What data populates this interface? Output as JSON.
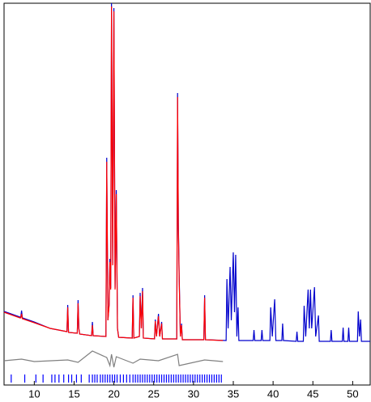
{
  "chart_data": {
    "type": "line",
    "xlim": [
      6.2,
      52.2
    ],
    "ylim": [
      0,
      472
    ],
    "xticks": [
      10,
      15,
      20,
      25,
      30,
      35,
      40,
      45,
      50
    ],
    "series": [
      {
        "color": "#0000cc",
        "x": [
          6.2,
          8.2,
          8.3,
          8.4,
          8.5,
          10,
          12,
          14.1,
          14.2,
          14.3,
          15.4,
          15.5,
          15.6,
          15.7,
          17.2,
          17.3,
          17.4,
          19.0,
          19.1,
          19.25,
          19.4,
          19.5,
          19.6,
          19.7,
          19.85,
          20.0,
          20.15,
          20.3,
          20.45,
          20.6,
          22.3,
          22.4,
          22.5,
          23.2,
          23.3,
          23.45,
          23.6,
          23.7,
          25.1,
          25.2,
          25.35,
          25.6,
          25.75,
          26.0,
          26.1,
          27.9,
          28.0,
          28.1,
          28.2,
          28.35,
          28.5,
          28.6,
          31.3,
          31.4,
          31.5,
          34.1,
          34.2,
          34.35,
          34.6,
          34.75,
          35.0,
          35.15,
          35.3,
          35.45,
          35.6,
          35.7,
          37.5,
          37.6,
          37.7,
          38.5,
          38.6,
          38.7,
          39.6,
          39.7,
          39.9,
          40.2,
          40.35,
          41.1,
          41.2,
          41.3,
          42.9,
          43.0,
          43.1,
          43.8,
          43.9,
          44.1,
          44.4,
          44.55,
          44.7,
          44.85,
          45.2,
          45.35,
          45.7,
          45.8,
          47.2,
          47.3,
          47.4,
          48.7,
          48.8,
          48.9,
          49.4,
          49.5,
          49.6,
          50.6,
          50.7,
          50.85,
          51.0,
          51.1,
          52.2
        ],
        "values": [
          91,
          84,
          84,
          92,
          83,
          78,
          70,
          66,
          99,
          65,
          64,
          105,
          70,
          63,
          61,
          78,
          61,
          60,
          281,
          80,
          100,
          156,
          120,
          472,
          150,
          466,
          120,
          241,
          70,
          59,
          58,
          111,
          58,
          60,
          114,
          70,
          120,
          58,
          57,
          81,
          60,
          88,
          60,
          78,
          57,
          57,
          361,
          200,
          136,
          60,
          76,
          56,
          56,
          111,
          56,
          55,
          131,
          70,
          146,
          80,
          164,
          90,
          161,
          60,
          96,
          55,
          55,
          68,
          55,
          55,
          68,
          55,
          55,
          96,
          60,
          106,
          55,
          55,
          76,
          55,
          54,
          66,
          54,
          54,
          98,
          60,
          118,
          70,
          118,
          70,
          121,
          60,
          86,
          54,
          54,
          68,
          54,
          54,
          71,
          54,
          54,
          71,
          54,
          54,
          91,
          60,
          81,
          54,
          54
        ]
      },
      {
        "color": "#ff0000",
        "x": [
          6.2,
          8.2,
          8.3,
          8.4,
          8.5,
          10,
          12,
          14.1,
          14.2,
          14.3,
          15.4,
          15.5,
          15.6,
          15.7,
          17.2,
          17.3,
          17.4,
          19.0,
          19.1,
          19.25,
          19.4,
          19.5,
          19.6,
          19.7,
          19.85,
          20.0,
          20.15,
          20.3,
          20.45,
          20.6,
          22.3,
          22.4,
          22.5,
          23.2,
          23.3,
          23.45,
          23.6,
          23.7,
          25.1,
          25.2,
          25.35,
          25.6,
          25.75,
          26.0,
          26.1,
          27.9,
          28.0,
          28.1,
          28.2,
          28.35,
          28.5,
          28.6,
          31.3,
          31.4,
          31.5,
          33.7
        ],
        "values": [
          90,
          83,
          83,
          88,
          82,
          77,
          70,
          66,
          96,
          65,
          64,
          101,
          69,
          63,
          61,
          74,
          61,
          60,
          276,
          80,
          98,
          152,
          118,
          468,
          148,
          462,
          118,
          236,
          70,
          59,
          58,
          108,
          58,
          60,
          110,
          70,
          116,
          58,
          57,
          79,
          60,
          85,
          60,
          76,
          57,
          57,
          356,
          196,
          132,
          60,
          74,
          56,
          56,
          108,
          56,
          55
        ]
      },
      {
        "color": "#808080",
        "x": [
          6.2,
          8.4,
          10,
          14.2,
          15.5,
          17.3,
          19.1,
          19.5,
          19.7,
          20.0,
          20.3,
          22.4,
          23.3,
          25.6,
          28.0,
          28.2,
          31.4,
          33.7
        ],
        "values": [
          30,
          32,
          29,
          31,
          28,
          42,
          34,
          24,
          38,
          22,
          35,
          27,
          32,
          30,
          38,
          24,
          31,
          29
        ]
      }
    ],
    "reflections": {
      "color": "#0000ff",
      "x": [
        7.1,
        8.8,
        10.2,
        11.1,
        12.2,
        12.6,
        13.1,
        13.7,
        14.3,
        14.7,
        15.3,
        15.9,
        16.9,
        17.3,
        17.6,
        17.9,
        18.3,
        18.6,
        18.9,
        19.2,
        19.5,
        19.8,
        20.1,
        20.4,
        20.8,
        21.2,
        21.6,
        22.0,
        22.4,
        22.7,
        23.0,
        23.3,
        23.6,
        23.9,
        24.2,
        24.5,
        24.8,
        25.1,
        25.4,
        25.7,
        26.0,
        26.3,
        26.6,
        26.9,
        27.2,
        27.5,
        27.8,
        28.1,
        28.4,
        28.7,
        29.0,
        29.3,
        29.6,
        29.9,
        30.2,
        30.5,
        30.8,
        31.1,
        31.4,
        31.7,
        32.0,
        32.3,
        32.6,
        32.9,
        33.2,
        33.5
      ]
    }
  }
}
